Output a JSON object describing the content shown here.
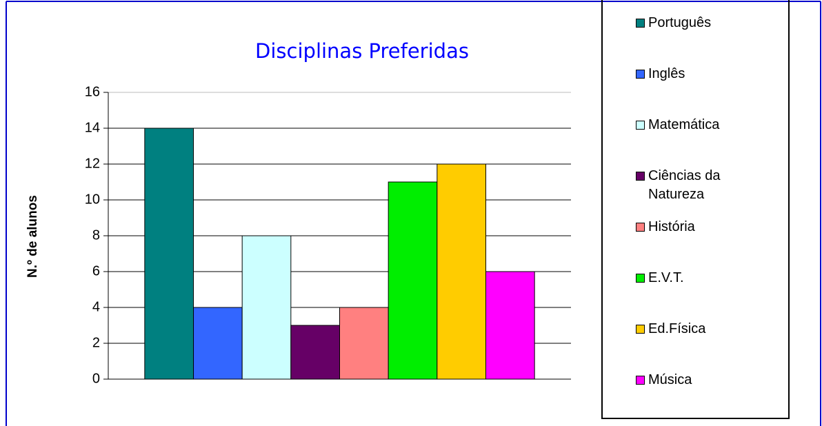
{
  "chart_data": {
    "type": "bar",
    "title": "Disciplinas Preferidas",
    "y_label": "N.º de alunos",
    "categories": [
      null
    ],
    "series": [
      {
        "name": "Português",
        "color": "#008080",
        "values": [
          14
        ]
      },
      {
        "name": "Inglês",
        "color": "#3366ff",
        "values": [
          4
        ]
      },
      {
        "name": "Matemática",
        "color": "#ccffff",
        "values": [
          8
        ]
      },
      {
        "name": "Ciências da Natureza",
        "color": "#660066",
        "values": [
          3
        ]
      },
      {
        "name": "História",
        "color": "#ff8080",
        "values": [
          4
        ]
      },
      {
        "name": "E.V.T.",
        "color": "#00ee00",
        "values": [
          11
        ]
      },
      {
        "name": "Ed.Física",
        "color": "#ffcc00",
        "values": [
          12
        ]
      },
      {
        "name": "Música",
        "color": "#ff00ff",
        "values": [
          6
        ]
      }
    ],
    "ylim": [
      0,
      16
    ],
    "yticks": [
      0,
      2,
      4,
      6,
      8,
      10,
      12,
      14,
      16
    ],
    "grid": true,
    "legend": "right"
  }
}
